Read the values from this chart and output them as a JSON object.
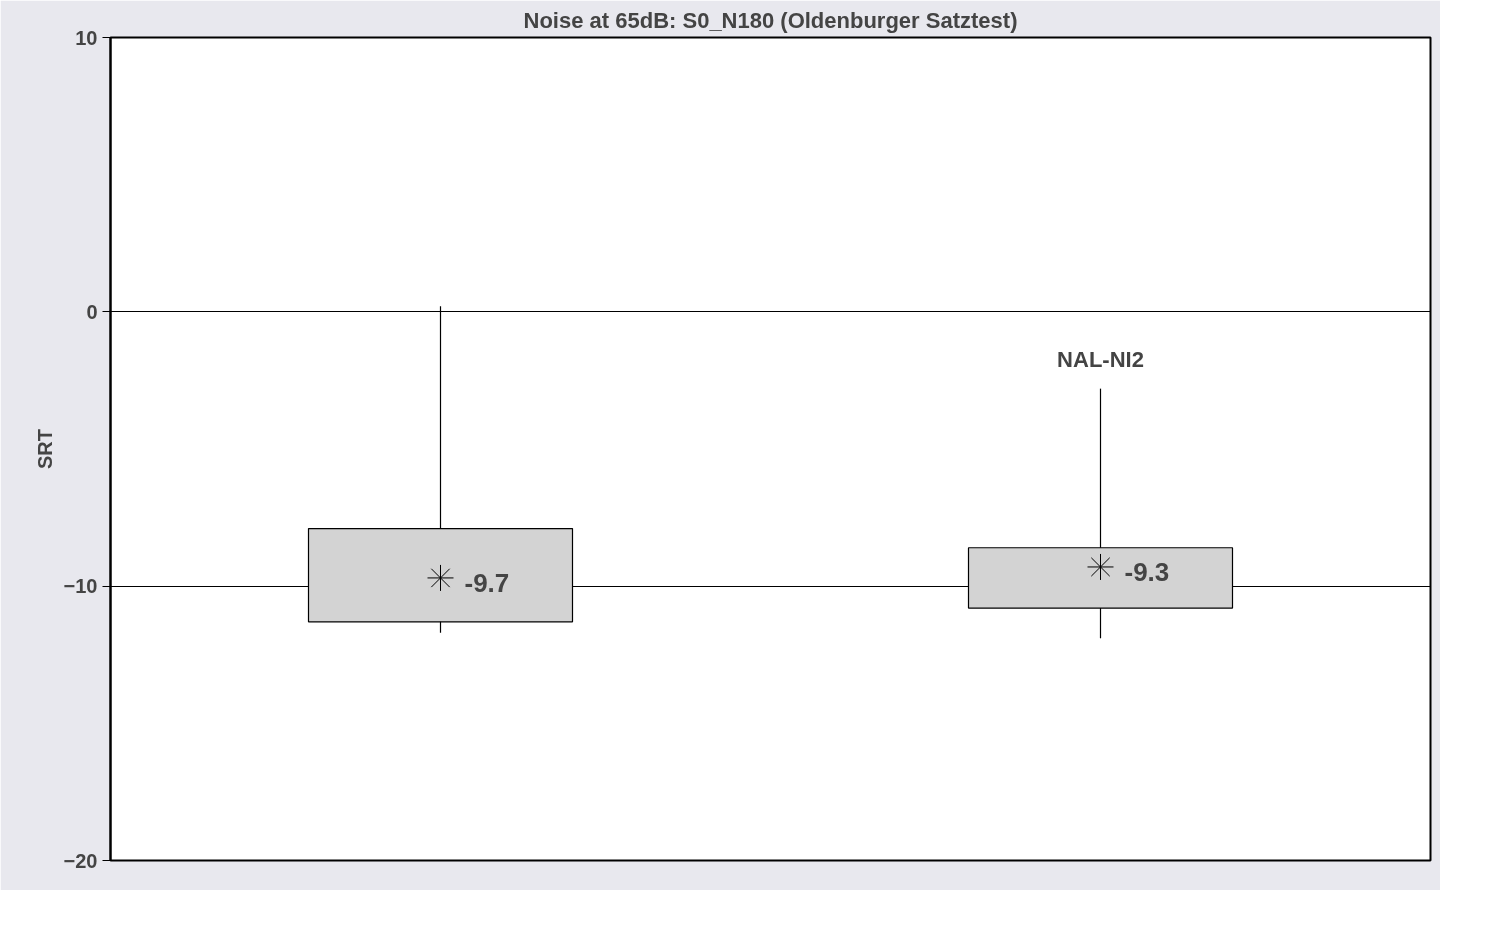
{
  "chart_data": {
    "type": "box",
    "title": "Noise at 65dB: S0_N180 (Oldenburger Satztest)",
    "ylabel": "SRT",
    "categories": [
      null,
      "NAL-NI2"
    ],
    "boxes": [
      {
        "low": -11.7,
        "q1": -11.3,
        "median": null,
        "q3": -7.9,
        "high": 0.2,
        "mean": -9.7
      },
      {
        "low": -11.9,
        "q1": -10.8,
        "median": null,
        "q3": -8.6,
        "high": -2.8,
        "mean": -9.3
      }
    ],
    "color": "#d3d3d3",
    "marker": "star",
    "value_labels": [
      "-9.7",
      "-9.3"
    ],
    "ylim": [
      -20,
      10
    ],
    "yticks": [
      -20,
      -10,
      0,
      10
    ],
    "grid": "y"
  }
}
